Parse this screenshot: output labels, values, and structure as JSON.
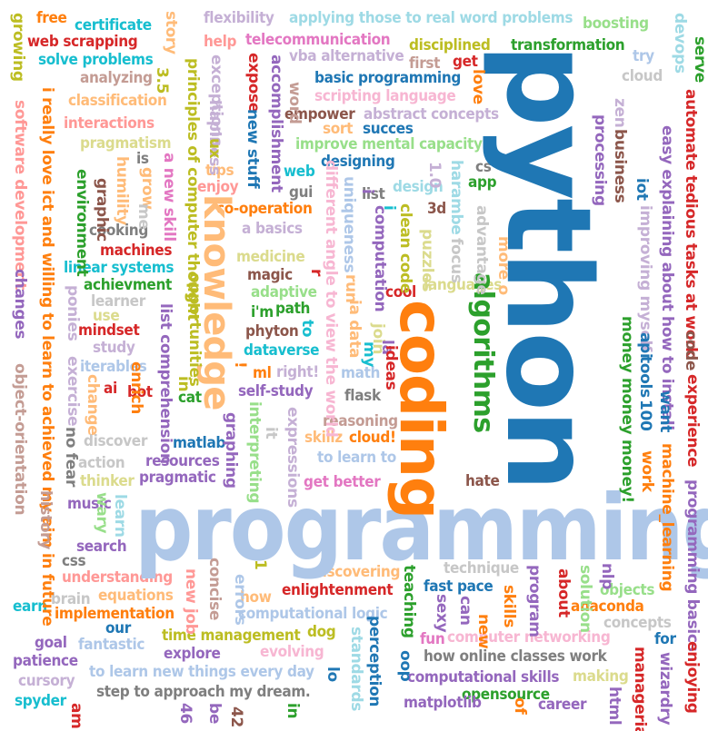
{
  "palette": {
    "blue": "#1f77b4",
    "lightblue": "#aec7e8",
    "orange": "#ff7f0e",
    "peach": "#ffbb78",
    "green": "#2ca02c",
    "lightgreen": "#98df8a",
    "red": "#d62728",
    "pink": "#ff9896",
    "purple": "#9467bd",
    "lavender": "#c5b0d5",
    "brown": "#8c564b",
    "tan": "#c49c94",
    "magenta": "#e377c2",
    "lightpink": "#f7b6d2",
    "gray": "#7f7f7f",
    "lightgray": "#c7c7c7",
    "olive": "#bcbd22",
    "khaki": "#dbdb8d",
    "cyan": "#17becf",
    "lightcyan": "#9edae5"
  },
  "words": {
    "python": "python",
    "programming": "programming",
    "coding": "coding",
    "knowledge": "knowledge",
    "algorithms": "algorithms",
    "free": "free",
    "certificate": "certificate",
    "story": "story",
    "flexibility": "flexibility",
    "applying": "applying those to real word problems",
    "boosting": "boosting",
    "devops": "devops",
    "serve": "serve",
    "growing": "growing",
    "web_scrapping": "web scrapping",
    "help": "help",
    "telecommunication": "telecommunication",
    "disciplined": "disciplined",
    "transformation": "transformation",
    "solve_problems": "solve problems",
    "vba": "vba alternative",
    "get": "get",
    "first": "first",
    "try": "try",
    "cloud": "cloud",
    "analyzing": "analyzing",
    "basic_programming": "basic programming",
    "love": "love",
    "classification": "classification",
    "scripting": "scripting language",
    "interactions": "interactions",
    "empower": "empower",
    "abstract": "abstract concepts",
    "sort": "sort",
    "succes": "succes",
    "pragmatism": "pragmatism",
    "improve": "improve mental capacity",
    "designing": "designing",
    "is": "is",
    "web": "web",
    "cs": "cs",
    "app": "app",
    "gui": "gui",
    "list": "list",
    "design": "design",
    "graphic": "graphic",
    "tips": "tips",
    "enjoy": "enjoy",
    "a_new_skill": "a new skill",
    "cooperation": "co-operation",
    "three_d": "3d",
    "cooking": "cooking",
    "a_basics": "a  basics",
    "machines": "machines",
    "medicine": "medicine",
    "linear": "linear systems",
    "magic": "magic",
    "adaptive": "adaptive",
    "achievment": "achievment",
    "languages": "languages",
    "learner": "learner",
    "i_m": "i'm",
    "path": "path",
    "cool": "cool",
    "use": "use",
    "mindset": "mindset",
    "phyton": "phyton",
    "study": "study",
    "dataverse": "dataverse",
    "iterables": "iterables",
    "ml": "ml",
    "right": "right!",
    "math": "math",
    "self_study": "self-study",
    "flask": "flask",
    "ai": "ai",
    "bot": "bot",
    "cat": "cat",
    "reasoning": "reasoning",
    "skillz": "skillz",
    "cloud_ex": "cloud!",
    "discover": "discover",
    "matlab": "matlab",
    "action": "action",
    "resources": "resources",
    "to_learn_to": "to learn to",
    "pragmatic": "pragmatic",
    "thinker": "thinker",
    "get_better": "get better",
    "hate": "hate",
    "music": "music",
    "search": "search",
    "css": "css",
    "understanding": "understanding",
    "discovering": "discovering",
    "technique": "technique",
    "fast_pace": "fast pace",
    "equations": "equations",
    "enlightenment": "enlightenment",
    "implementation": "implementation",
    "computational_logic": "computational logic",
    "our": "our",
    "fantastic": "fantastic",
    "time_management": "time management",
    "explore": "explore",
    "evolving": "evolving",
    "goal": "goal",
    "patience": "patience",
    "fun": "fun",
    "computer_networking": "computer networking",
    "online_classes": "how online classes work",
    "to_learn_new": "to learn new things every day",
    "computational_skills": "computational skills",
    "making": "making",
    "cursory": "cursory",
    "step": "step to approach my dream.",
    "opensource": "opensource",
    "spyder": "spyder",
    "matplotlib": "matplotlib",
    "career": "career",
    "earn": "earn",
    "brain": "brain",
    "how": "how",
    "dog": "dog",
    "objects": "objects",
    "concepts": "concepts",
    "anaconda": "anaconda",
    "for": "for",
    "v_love": "i really love ict and willing to learn to achieved my aim in future",
    "v_software": "software development",
    "v_object": "object-orientation",
    "v_principles": "principles of computer thought",
    "v_exceptions": "exceptions",
    "v_hapiness": "hapiness",
    "v_expose": "expose",
    "v_new_stuff": "new stuff",
    "v_accomplishment": "accomplishment",
    "v_word": "word",
    "v_different": "different angle to view the world",
    "v_uniqueness": "uniqueness",
    "v_computation": "computation",
    "v_clean_code": "clean code",
    "v_harambe": "harambe",
    "v_focus": "focus",
    "v_advantage": "advantage",
    "v_puzzles": "puzzles",
    "v_more": "more o",
    "v_automate": "automate tedious tasks at work",
    "v_easy": "easy explaining about how to install",
    "v_improving": "improving myself",
    "v_money": "money money money!",
    "v_api": "api",
    "v_tools": "tools",
    "v_processing": "processing",
    "v_business": "business",
    "v_iot": "iot",
    "v_zen": "zen",
    "v_code": "code",
    "v_experience": "experience",
    "v_want": "want",
    "v_machine_learning": "machine_learning",
    "v_work": "work",
    "v_hundred": "100",
    "v_list_comp": "list comprehension",
    "v_opportunities": "opportunities",
    "v_graphing": "graphing",
    "v_interpreting": "interpreting",
    "v_expressions": "expressions",
    "v_enrich": "enrich",
    "v_exercise": "exercise",
    "v_change": "change",
    "v_ponies": "ponies",
    "v_humility": "humility",
    "v_environment": "environment",
    "v_changes": "changes",
    "v_no_fear": "no fear",
    "v_history": "history",
    "v_wary": "wary",
    "v_learn": "learn",
    "v_concise": "concise",
    "v_errors": "errors",
    "v_new_job": "new job",
    "v_perception": "perception",
    "v_standards": "standards",
    "v_teaching": "teaching",
    "v_sexy": "sexy",
    "v_can": "can",
    "v_new": "new",
    "v_skills": "skills",
    "v_program": "program",
    "v_about": "about",
    "v_solution": "solution",
    "v_nlp": "nlp",
    "v_prog_basics": "programming basics",
    "v_managerial": "managerial",
    "v_wizardry": "wizardry",
    "v_enjoying": "enjoying",
    "v_html": "html",
    "v_of": "of",
    "v_be": "be",
    "v_forty_two": "42",
    "v_forty_six": "46",
    "v_am": "am",
    "v_in": "in",
    "v_lo": "lo",
    "v_oop": "oop",
    "v_ux": "ux",
    "v_ia_data": "ia data",
    "v_join": "join",
    "v_run": "run",
    "v_my": "my",
    "v_la": "la",
    "v_ideas": "ideas",
    "v_one_zero": "1.0",
    "v_three_five": "3.5",
    "v_to": "to",
    "v_it": "it",
    "v_grow": "grow",
    "v_me": "me",
    "v_r": "r",
    "v_i": "i",
    "v_i2": "i",
    "v_excl": "!",
    "v_one": "1"
  }
}
